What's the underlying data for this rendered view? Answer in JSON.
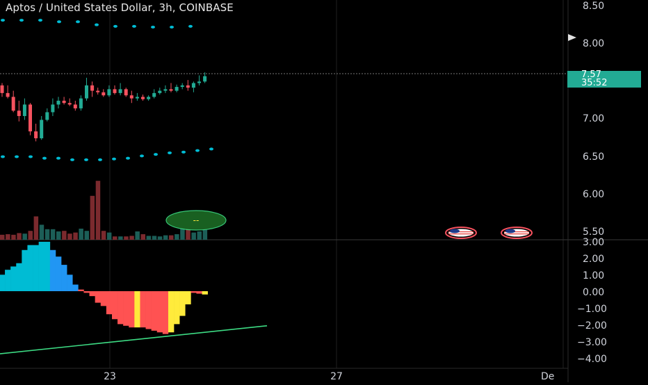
{
  "header": {
    "title": "Aptos / United States Dollar, 3h, COINBASE"
  },
  "price_scale": {
    "labels": [
      "8.50",
      "8.00",
      "7.00",
      "6.50",
      "6.00",
      "5.50"
    ],
    "current_price": "7.57",
    "countdown": "35:52"
  },
  "oscillator_scale": {
    "labels": [
      "3.00",
      "2.00",
      "1.00",
      "0.00",
      "−1.00",
      "−2.00",
      "−3.00",
      "−4.00"
    ]
  },
  "time_axis": {
    "labels": [
      "23",
      "27",
      "De"
    ]
  },
  "indicator_badge": {
    "text": "--"
  },
  "colors": {
    "up": "#22ab94",
    "down": "#f7525f",
    "dots": "#00bcd4",
    "vol_up": "#1c5e57",
    "vol_down": "#7b2a2e",
    "osc_cyan": "#00bcd4",
    "osc_blue": "#2196f3",
    "osc_red": "#ff5252",
    "osc_yellow": "#ffeb3b",
    "trendline": "#3ddc84",
    "flag_ring": "#f7525f"
  },
  "icons": [
    "us-flag-icon",
    "us-flag-icon",
    "price-label-arrow-icon"
  ],
  "chart_data": {
    "type": "candlestick",
    "candles_ohlc": [
      [
        7.45,
        7.48,
        7.3,
        7.35
      ],
      [
        7.35,
        7.45,
        7.28,
        7.3
      ],
      [
        7.3,
        7.38,
        7.1,
        7.12
      ],
      [
        7.12,
        7.25,
        6.98,
        7.05
      ],
      [
        7.05,
        7.28,
        7.0,
        7.2
      ],
      [
        7.2,
        7.22,
        6.8,
        6.85
      ],
      [
        6.85,
        6.95,
        6.72,
        6.76
      ],
      [
        6.76,
        7.05,
        6.74,
        7.0
      ],
      [
        7.0,
        7.15,
        6.98,
        7.1
      ],
      [
        7.1,
        7.28,
        7.05,
        7.2
      ],
      [
        7.2,
        7.3,
        7.15,
        7.25
      ],
      [
        7.25,
        7.3,
        7.2,
        7.22
      ],
      [
        7.22,
        7.28,
        7.18,
        7.2
      ],
      [
        7.2,
        7.25,
        7.12,
        7.15
      ],
      [
        7.15,
        7.32,
        7.12,
        7.28
      ],
      [
        7.28,
        7.55,
        7.25,
        7.45
      ],
      [
        7.45,
        7.5,
        7.3,
        7.38
      ],
      [
        7.38,
        7.42,
        7.33,
        7.36
      ],
      [
        7.36,
        7.4,
        7.3,
        7.32
      ],
      [
        7.32,
        7.45,
        7.3,
        7.4
      ],
      [
        7.4,
        7.45,
        7.33,
        7.35
      ],
      [
        7.35,
        7.48,
        7.32,
        7.4
      ],
      [
        7.4,
        7.42,
        7.3,
        7.32
      ],
      [
        7.32,
        7.38,
        7.22,
        7.28
      ],
      [
        7.28,
        7.35,
        7.25,
        7.3
      ],
      [
        7.3,
        7.33,
        7.25,
        7.27
      ],
      [
        7.27,
        7.32,
        7.25,
        7.3
      ],
      [
        7.3,
        7.4,
        7.28,
        7.35
      ],
      [
        7.35,
        7.42,
        7.33,
        7.38
      ],
      [
        7.38,
        7.45,
        7.35,
        7.4
      ],
      [
        7.4,
        7.48,
        7.36,
        7.38
      ],
      [
        7.38,
        7.46,
        7.36,
        7.43
      ],
      [
        7.43,
        7.48,
        7.4,
        7.45
      ],
      [
        7.45,
        7.52,
        7.38,
        7.42
      ],
      [
        7.42,
        7.5,
        7.36,
        7.48
      ],
      [
        7.48,
        7.58,
        7.45,
        7.5
      ],
      [
        7.5,
        7.62,
        7.48,
        7.57
      ]
    ],
    "upper_dots": [
      8.3,
      8.3,
      8.3,
      8.28,
      8.28,
      8.24,
      8.22,
      8.22,
      8.21,
      8.21,
      8.22
    ],
    "lower_dots": [
      6.52,
      6.52,
      6.52,
      6.5,
      6.5,
      6.48,
      6.48,
      6.48,
      6.49,
      6.5,
      6.53,
      6.55,
      6.57,
      6.58,
      6.6,
      6.62
    ],
    "volume": [
      0.9,
      1.0,
      0.9,
      1.2,
      1.1,
      1.6,
      4.2,
      2.7,
      1.9,
      1.9,
      1.5,
      1.6,
      1.1,
      1.3,
      2.0,
      1.6,
      7.9,
      10.6,
      1.6,
      1.3,
      0.6,
      0.6,
      0.6,
      0.7,
      1.5,
      1.0,
      0.7,
      0.7,
      0.6,
      0.8,
      0.8,
      1.0,
      2.1,
      1.9,
      1.3,
      1.5,
      1.8
    ],
    "oscillator": [
      1.0,
      1.3,
      1.5,
      1.7,
      2.5,
      2.8,
      2.8,
      3.0,
      3.0,
      2.5,
      2.1,
      1.6,
      1.0,
      0.4,
      0.1,
      -0.1,
      -0.3,
      -0.7,
      -0.9,
      -1.4,
      -1.7,
      -2.0,
      -2.1,
      -2.2,
      -2.2,
      -2.2,
      -2.3,
      -2.4,
      -2.5,
      -2.6,
      -2.5,
      -2.0,
      -1.5,
      -0.8,
      -0.1,
      -0.15,
      -0.2
    ],
    "osc_colors": [
      "c",
      "c",
      "c",
      "c",
      "c",
      "c",
      "c",
      "c",
      "c",
      "b",
      "b",
      "b",
      "b",
      "b",
      "r",
      "r",
      "r",
      "r",
      "r",
      "r",
      "r",
      "r",
      "r",
      "r",
      "y",
      "r",
      "r",
      "r",
      "r",
      "r",
      "y",
      "y",
      "y",
      "y",
      "r",
      "r",
      "y"
    ],
    "trendline": [
      [
        0,
        -3.8
      ],
      [
        38,
        -2.1
      ]
    ],
    "price_ylim": [
      5.5,
      8.5
    ],
    "osc_ylim": [
      -4.0,
      3.0
    ],
    "current_price": 7.57
  }
}
